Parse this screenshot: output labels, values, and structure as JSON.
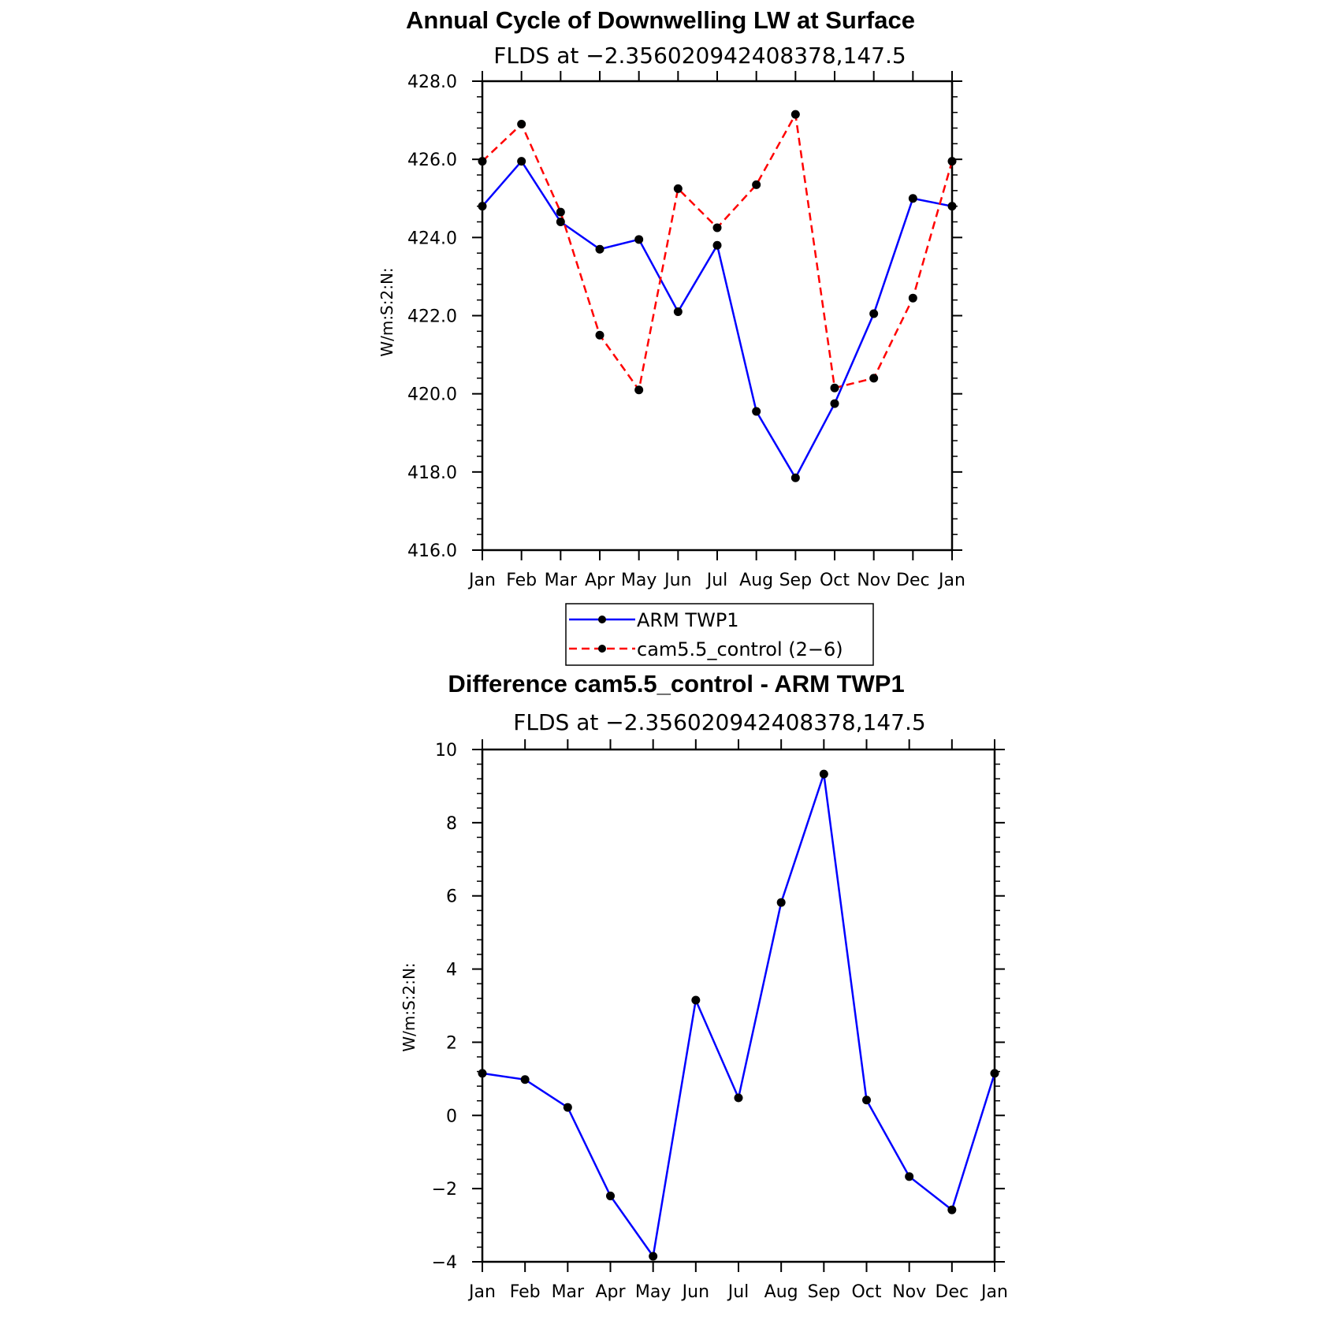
{
  "chart_data": [
    {
      "type": "line",
      "title": "Annual Cycle of Downwelling LW at Surface",
      "subtitle": "FLDS at −2.356020942408378,147.5",
      "xlabel": "",
      "ylabel": "W/m:S:2:N:",
      "categories": [
        "Jan",
        "Feb",
        "Mar",
        "Apr",
        "May",
        "Jun",
        "Jul",
        "Aug",
        "Sep",
        "Oct",
        "Nov",
        "Dec",
        "Jan"
      ],
      "ylim": [
        416,
        428
      ],
      "yticks": [
        "416.0",
        "418.0",
        "420.0",
        "422.0",
        "424.0",
        "426.0",
        "428.0"
      ],
      "series": [
        {
          "name": "ARM TWP1",
          "color": "#0000ff",
          "dash": "solid",
          "values": [
            424.8,
            425.95,
            424.4,
            423.7,
            423.95,
            422.1,
            423.8,
            419.55,
            417.85,
            419.75,
            422.05,
            425.0,
            424.8
          ]
        },
        {
          "name": "cam5.5_control (2−6)",
          "color": "#ff0000",
          "dash": "dashed",
          "values": [
            425.95,
            426.9,
            424.65,
            421.5,
            420.1,
            425.25,
            424.25,
            425.35,
            427.15,
            420.15,
            420.4,
            422.45,
            425.95
          ]
        }
      ],
      "legend": {
        "placement": "below"
      },
      "grid": false
    },
    {
      "type": "line",
      "title": "Difference cam5.5_control - ARM TWP1",
      "subtitle": "FLDS at −2.356020942408378,147.5",
      "xlabel": "",
      "ylabel": "W/m:S:2:N:",
      "categories": [
        "Jan",
        "Feb",
        "Mar",
        "Apr",
        "May",
        "Jun",
        "Jul",
        "Aug",
        "Sep",
        "Oct",
        "Nov",
        "Dec",
        "Jan"
      ],
      "ylim": [
        -4,
        10
      ],
      "yticks": [
        "−4",
        "−2",
        "0",
        "2",
        "4",
        "6",
        "8",
        "10"
      ],
      "series": [
        {
          "color": "#0000ff",
          "dash": "solid",
          "values": [
            1.15,
            0.98,
            0.22,
            -2.2,
            -3.85,
            3.15,
            0.48,
            5.82,
            9.33,
            0.42,
            -1.67,
            -2.58,
            1.15
          ]
        }
      ],
      "grid": false
    }
  ]
}
